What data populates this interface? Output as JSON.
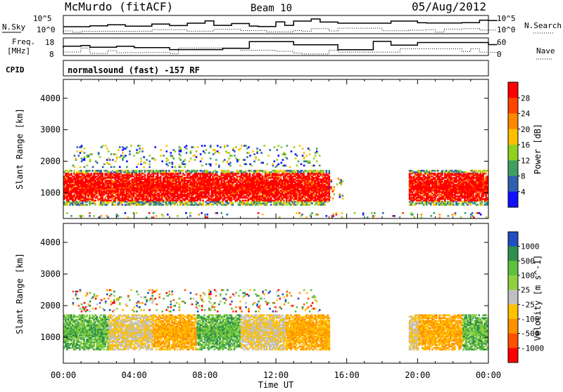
{
  "header": {
    "station": "McMurdo (fitACF)",
    "beam": "Beam 10",
    "date": "05/Aug/2012",
    "program": "normalsound (fast) -157 RF"
  },
  "side_labels": {
    "nsky": "N.Sky",
    "freq": "Freq.",
    "mhz": "[MHz]",
    "cpid": "CPID",
    "nsearch": "N.Search",
    "nave": "Nave"
  },
  "top_panels": {
    "noise_ticks_left": [
      "10^5",
      "10^0"
    ],
    "noise_ticks_right": [
      "10^5",
      "10^0"
    ],
    "freq_ticks": [
      "18",
      "8"
    ],
    "nave_ticks": [
      "60",
      "0"
    ]
  },
  "chart_data": [
    {
      "type": "heatmap",
      "title": "",
      "xlabel": "Time UT",
      "ylabel": "Slant Range [km]",
      "x_tick_labels": [
        "00:00",
        "04:00",
        "08:00",
        "12:00",
        "16:00",
        "20:00",
        "00:00"
      ],
      "xlim_hours": [
        0,
        24
      ],
      "ylim": [
        180,
        4600
      ],
      "y_tick_labels": [
        "1000",
        "2000",
        "3000",
        "4000"
      ],
      "y_ticks": [
        1000,
        2000,
        3000,
        4000
      ],
      "colorbar": {
        "label": "Power [dB]",
        "tick_labels": [
          "28",
          "24",
          "20",
          "16",
          "12",
          "8",
          "4"
        ],
        "colors": [
          "#ff0000",
          "#ff4400",
          "#ff8800",
          "#ffc000",
          "#90d020",
          "#3f9f5f",
          "#3060b0",
          "#1010ff"
        ]
      },
      "echo_regions": [
        {
          "t_start": 0.0,
          "t_end": 15.0,
          "range_min": 600,
          "range_max": 1700,
          "level": "strong"
        },
        {
          "t_start": 15.0,
          "t_end": 15.8,
          "range_min": 800,
          "range_max": 1500,
          "level": "weak"
        },
        {
          "t_start": 19.5,
          "t_end": 24.0,
          "range_min": 600,
          "range_max": 1700,
          "level": "strong"
        },
        {
          "t_start": 0.5,
          "t_end": 14.5,
          "range_min": 1800,
          "range_max": 2500,
          "level": "sparse"
        },
        {
          "t_start": 0.0,
          "t_end": 24.0,
          "range_min": 200,
          "range_max": 350,
          "level": "ground"
        }
      ]
    },
    {
      "type": "heatmap",
      "title": "",
      "xlabel": "Time UT",
      "ylabel": "Slant Range [km]",
      "x_tick_labels": [
        "00:00",
        "04:00",
        "08:00",
        "12:00",
        "16:00",
        "20:00",
        "00:00"
      ],
      "xlim_hours": [
        0,
        24
      ],
      "ylim": [
        180,
        4600
      ],
      "y_tick_labels": [
        "1000",
        "2000",
        "3000",
        "4000"
      ],
      "y_ticks": [
        1000,
        2000,
        3000,
        4000
      ],
      "colorbar": {
        "label": "Velocity [m s^-1]",
        "tick_labels": [
          "1000",
          "500",
          "100",
          "25",
          "-25",
          "-100",
          "-500",
          "-1000"
        ],
        "colors": [
          "#1f4fc0",
          "#2f8f4f",
          "#5fbf3f",
          "#90d040",
          "#c0c0c0",
          "#ffc000",
          "#ff9000",
          "#ff5000",
          "#ff0000"
        ]
      },
      "echo_regions": [
        {
          "t_start": 0.0,
          "t_end": 15.0,
          "range_min": 600,
          "range_max": 1700,
          "level": "strong"
        },
        {
          "t_start": 19.5,
          "t_end": 24.0,
          "range_min": 600,
          "range_max": 1700,
          "level": "strong"
        },
        {
          "t_start": 0.5,
          "t_end": 14.5,
          "range_min": 1800,
          "range_max": 2500,
          "level": "sparse"
        }
      ]
    }
  ]
}
